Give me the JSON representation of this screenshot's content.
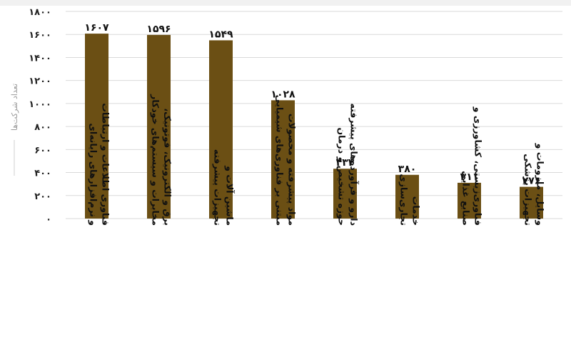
{
  "chart_data": {
    "type": "bar",
    "ylabel": "تعداد شرکت‌ها",
    "ylim": [
      0,
      1800
    ],
    "yticks": [
      {
        "value": 0,
        "label": "۰"
      },
      {
        "value": 200,
        "label": "۲۰۰"
      },
      {
        "value": 400,
        "label": "۴۰۰"
      },
      {
        "value": 600,
        "label": "۶۰۰"
      },
      {
        "value": 800,
        "label": "۸۰۰"
      },
      {
        "value": 1000,
        "label": "۱۰۰۰"
      },
      {
        "value": 1200,
        "label": "۱۲۰۰"
      },
      {
        "value": 1400,
        "label": "۱۴۰۰"
      },
      {
        "value": 1600,
        "label": "۱۶۰۰"
      },
      {
        "value": 1800,
        "label": "۱۸۰۰"
      }
    ],
    "categories": [
      "فناوری اطلاعات و ارتباطات و نرم‌افزارهای رایانه‌ای",
      "برق و الکترونیک، فوتونیک، مخابرات و سیستم‌های خودکار",
      "ماشین آلات و تجهیزات پیشرفته",
      "مواد پیشرفته و محصولات مبتنی بر فناوری‌های شیمیایی",
      "دارو و فرآورده‌های پیشرفته حوزه تشخیص و درمان",
      "خدمات تجاری‌سازی",
      "فناوری‌زیستی، کشاورزی و صنایع غذایی",
      "وسایل، ملزومات و تجهیزات پزشکی"
    ],
    "values": [
      1607,
      1596,
      1549,
      1028,
      433,
      380,
      311,
      276
    ],
    "value_labels": [
      "۱۶۰۷",
      "۱۵۹۶",
      "۱۵۴۹",
      "۱۰۲۸",
      "۴۳۳",
      "۳۸۰",
      "۳۱۱",
      "۲۷۶"
    ],
    "grid": true,
    "bar_color": "#6b4f14",
    "grid_color": "#d9d9d9"
  }
}
